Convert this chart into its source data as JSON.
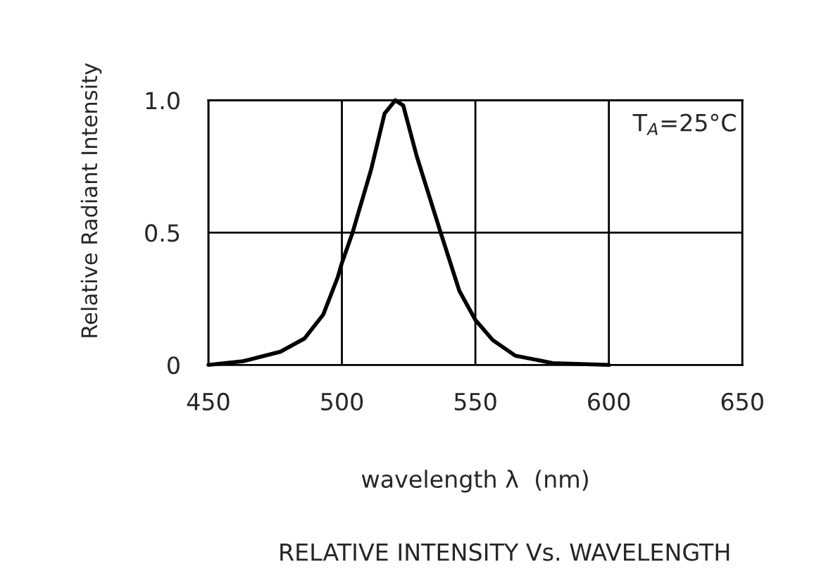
{
  "chart_data": {
    "type": "line",
    "xlabel": "wavelength λ  (nm)",
    "ylabel": "Relative Radiant Intensity",
    "annotations": [
      "T$_{A}$=25°C",
      "RELATIVE INTENSITY Vs. WAVELENGTH"
    ],
    "series": [
      {
        "color": "#000000",
        "x": [
          450,
          463,
          477,
          486,
          493,
          498.4,
          500,
          504,
          511,
          516,
          520,
          523,
          528,
          537,
          544,
          550,
          556.5,
          565,
          579,
          600
        ],
        "values": [
          0,
          0.014,
          0.05,
          0.1,
          0.19,
          0.33,
          0.385,
          0.5,
          0.74,
          0.95,
          1.0,
          0.98,
          0.79,
          0.5,
          0.28,
          0.17,
          0.094,
          0.035,
          0.007,
          0
        ]
      }
    ],
    "xlim": [
      450,
      650
    ],
    "xticks": [
      450,
      500,
      550,
      600,
      650
    ],
    "ylim": [
      0,
      1.0
    ],
    "yticks": [
      0,
      0.5,
      {
        "value": 1.0,
        "label": "1.0"
      }
    ],
    "grid": true,
    "legend": false,
    "marker": "none",
    "line_style": "solid"
  }
}
